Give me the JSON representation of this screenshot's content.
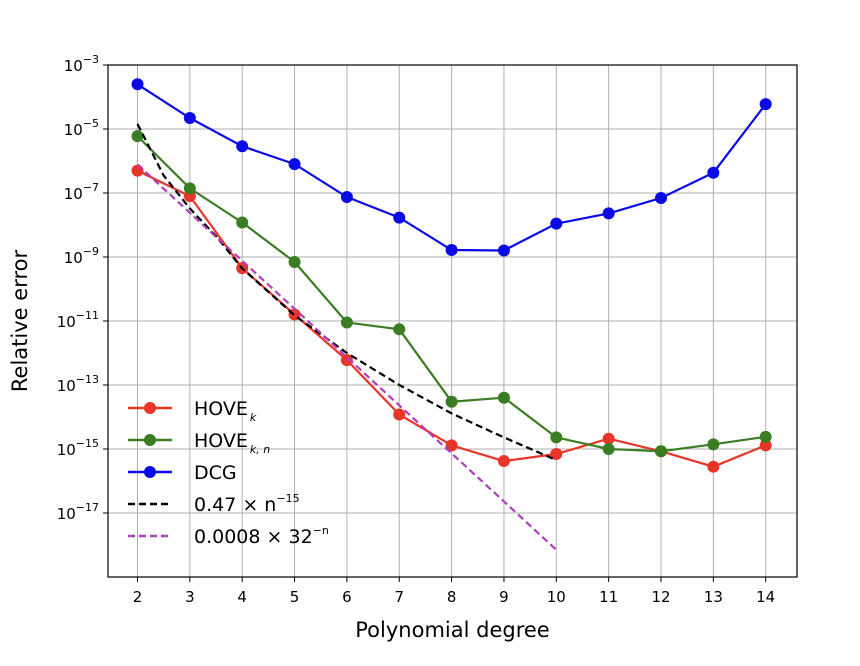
{
  "chart_data": {
    "type": "line",
    "xlabel": "Polynomial degree",
    "ylabel": "Relative error",
    "x_ticks": [
      2,
      3,
      4,
      5,
      6,
      7,
      8,
      9,
      10,
      11,
      12,
      13,
      14
    ],
    "y_log_scale": true,
    "ylim": [
      1e-19,
      0.001
    ],
    "y_ticks": [
      {
        "base": "10",
        "exp": "−3",
        "value": 0.001
      },
      {
        "base": "10",
        "exp": "−5",
        "value": 1e-05
      },
      {
        "base": "10",
        "exp": "−7",
        "value": 1e-07
      },
      {
        "base": "10",
        "exp": "−9",
        "value": 1e-09
      },
      {
        "base": "10",
        "exp": "−11",
        "value": 1e-11
      },
      {
        "base": "10",
        "exp": "−13",
        "value": 1e-13
      },
      {
        "base": "10",
        "exp": "−15",
        "value": 1e-15
      },
      {
        "base": "10",
        "exp": "−17",
        "value": 1e-17
      }
    ],
    "grid": true,
    "legend_position": "lower-left",
    "series": [
      {
        "name": "HOVE",
        "name_sub": "k",
        "color": "#e8352a",
        "style": "solid",
        "marker": "circle",
        "x": [
          2,
          3,
          4,
          5,
          6,
          7,
          8,
          9,
          10,
          11,
          12,
          13,
          14
        ],
        "y": [
          5e-07,
          8e-08,
          4.5e-10,
          1.6e-11,
          6e-13,
          1.2e-14,
          1.3e-15,
          4.2e-16,
          7e-16,
          2.1e-15,
          8.5e-16,
          2.8e-16,
          1.3e-15
        ]
      },
      {
        "name": "HOVE",
        "name_sub": "k, n",
        "color": "#3a7d22",
        "style": "solid",
        "marker": "circle",
        "x": [
          2,
          3,
          4,
          5,
          6,
          7,
          8,
          9,
          10,
          11,
          12,
          13,
          14
        ],
        "y": [
          6e-06,
          1.4e-07,
          1.2e-08,
          7e-10,
          9e-12,
          5.5e-12,
          3e-14,
          4e-14,
          2.3e-15,
          1e-15,
          8.5e-16,
          1.4e-15,
          2.4e-15
        ]
      },
      {
        "name": "DCG",
        "name_sub": "",
        "color": "#0a0ae6",
        "style": "solid",
        "marker": "circle",
        "x": [
          2,
          3,
          4,
          5,
          6,
          7,
          8,
          9,
          10,
          11,
          12,
          13,
          14
        ],
        "y": [
          0.00025,
          2.2e-05,
          2.9e-06,
          8e-07,
          7.5e-08,
          1.7e-08,
          1.65e-09,
          1.6e-09,
          1.1e-08,
          2.3e-08,
          7e-08,
          4.3e-07,
          6e-05
        ]
      },
      {
        "name": "0.47 × n",
        "name_sup": "−15",
        "color": "#000000",
        "style": "dashed",
        "marker": "none",
        "x": [
          2,
          2.5,
          3,
          3.5,
          4,
          5,
          6,
          7,
          8,
          9,
          10
        ],
        "y": [
          1.43e-05,
          3.5e-07,
          3.3e-08,
          4.5e-09,
          4.4e-10,
          1.5e-11,
          1e-12,
          1e-13,
          1.3e-14,
          2.3e-15,
          4.5e-16
        ]
      },
      {
        "name": "0.0008 × 32",
        "name_sup": "−n",
        "color": "#b03cc0",
        "style": "dashed",
        "marker": "none",
        "x": [
          2,
          3,
          4,
          5,
          6,
          7,
          8,
          9,
          10
        ],
        "y": [
          7.8e-07,
          2.4e-08,
          7.6e-10,
          2.4e-11,
          7.4e-13,
          2.3e-14,
          7.3e-16,
          2.3e-17,
          7.1e-19
        ]
      }
    ]
  }
}
